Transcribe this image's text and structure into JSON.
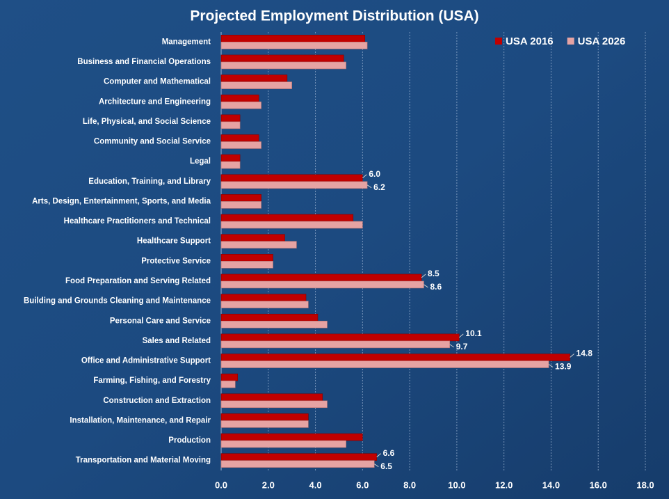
{
  "chart_data": {
    "type": "hbar",
    "title": "Projected Employment Distribution (USA)",
    "categories": [
      "Management",
      "Business and Financial Operations",
      "Computer and Mathematical",
      "Architecture and Engineering",
      "Life, Physical, and Social Science",
      "Community and Social Service",
      "Legal",
      "Education, Training, and Library",
      "Arts, Design, Entertainment, Sports, and Media",
      "Healthcare Practitioners and Technical",
      "Healthcare Support",
      "Protective Service",
      "Food Preparation and Serving Related",
      "Building and Grounds Cleaning and Maintenance",
      "Personal Care and Service",
      "Sales and Related",
      "Office and Administrative Support",
      "Farming, Fishing, and Forestry",
      "Construction and Extraction",
      "Installation, Maintenance, and Repair",
      "Production",
      "Transportation and Material Moving"
    ],
    "series": [
      {
        "name": "USA 2016",
        "color": "#c00000",
        "values": [
          6.1,
          5.2,
          2.8,
          1.6,
          0.8,
          1.6,
          0.8,
          6.0,
          1.7,
          5.6,
          2.7,
          2.2,
          8.5,
          3.6,
          4.1,
          10.1,
          14.8,
          0.7,
          4.3,
          3.7,
          6.0,
          6.6
        ],
        "value_labels": [
          null,
          null,
          null,
          null,
          null,
          null,
          null,
          "6.0",
          null,
          null,
          null,
          null,
          "8.5",
          null,
          null,
          "10.1",
          "14.8",
          null,
          null,
          null,
          null,
          "6.6"
        ]
      },
      {
        "name": "USA 2026",
        "color": "#e6a3a3",
        "values": [
          6.2,
          5.3,
          3.0,
          1.7,
          0.8,
          1.7,
          0.8,
          6.2,
          1.7,
          6.0,
          3.2,
          2.2,
          8.6,
          3.7,
          4.5,
          9.7,
          13.9,
          0.6,
          4.5,
          3.7,
          5.3,
          6.5
        ],
        "value_labels": [
          null,
          null,
          null,
          null,
          null,
          null,
          null,
          "6.2",
          null,
          null,
          null,
          null,
          "8.6",
          null,
          null,
          "9.7",
          "13.9",
          null,
          null,
          null,
          null,
          "6.5"
        ]
      }
    ],
    "xlim": [
      0,
      18
    ],
    "xticks": [
      {
        "value": 0,
        "label": "0.0"
      },
      {
        "value": 2,
        "label": "2.0"
      },
      {
        "value": 4,
        "label": "4.0"
      },
      {
        "value": 6,
        "label": "6.0"
      },
      {
        "value": 8,
        "label": "8.0"
      },
      {
        "value": 10,
        "label": "10.0"
      },
      {
        "value": 12,
        "label": "12.0"
      },
      {
        "value": 14,
        "label": "14.0"
      },
      {
        "value": 16,
        "label": "16.0"
      },
      {
        "value": 18,
        "label": "18.0"
      }
    ],
    "grid": true,
    "legend": "top-right"
  }
}
